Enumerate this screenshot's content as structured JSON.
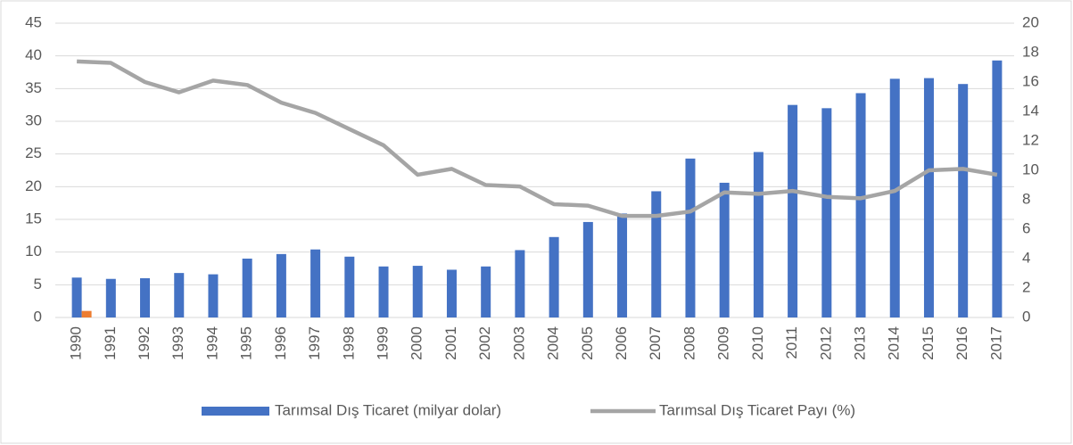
{
  "chart_data": {
    "type": "bar",
    "categories": [
      "1990",
      "1991",
      "1992",
      "1993",
      "1994",
      "1995",
      "1996",
      "1997",
      "1998",
      "1999",
      "2000",
      "2001",
      "2002",
      "2003",
      "2004",
      "2005",
      "2006",
      "2007",
      "2008",
      "2009",
      "2010",
      "2011",
      "2012",
      "2013",
      "2014",
      "2015",
      "2016",
      "2017"
    ],
    "series": [
      {
        "name": "Tarımsal Dış Ticaret (milyar dolar)",
        "color": "#4472c4",
        "type": "bar",
        "values": [
          6.1,
          5.9,
          6.0,
          6.8,
          6.6,
          9.0,
          9.7,
          10.4,
          9.3,
          7.8,
          7.9,
          7.3,
          7.8,
          10.3,
          12.3,
          14.6,
          15.9,
          19.3,
          24.3,
          20.6,
          25.3,
          32.5,
          32.0,
          34.3,
          36.5,
          36.6,
          35.7,
          39.3
        ]
      },
      {
        "color": "#ed7d31",
        "type": "bar",
        "values": [
          1,
          null,
          null,
          null,
          null,
          null,
          null,
          null,
          null,
          null,
          null,
          null,
          null,
          null,
          null,
          null,
          null,
          null,
          null,
          null,
          null,
          null,
          null,
          null,
          null,
          null,
          null,
          null
        ]
      },
      {
        "name": "Tarımsal Dış Ticaret Payı (%)",
        "color": "#a5a5a5",
        "type": "line",
        "axis": "y2",
        "values": [
          17.4,
          17.3,
          16.0,
          15.3,
          16.1,
          15.8,
          14.6,
          13.9,
          12.8,
          11.7,
          9.7,
          10.1,
          9.0,
          8.9,
          7.7,
          7.6,
          6.9,
          6.9,
          7.2,
          8.5,
          8.4,
          8.6,
          8.2,
          8.1,
          8.6,
          10.0,
          10.1,
          9.7
        ]
      }
    ],
    "ylim": [
      0,
      45
    ],
    "yticks": [
      0,
      5,
      10,
      15,
      20,
      25,
      30,
      35,
      40,
      45
    ],
    "y2lim": [
      0,
      20
    ],
    "y2ticks": [
      0,
      2,
      4,
      6,
      8,
      10,
      12,
      14,
      16,
      18,
      20
    ],
    "grid": true,
    "legend": "bottom"
  }
}
